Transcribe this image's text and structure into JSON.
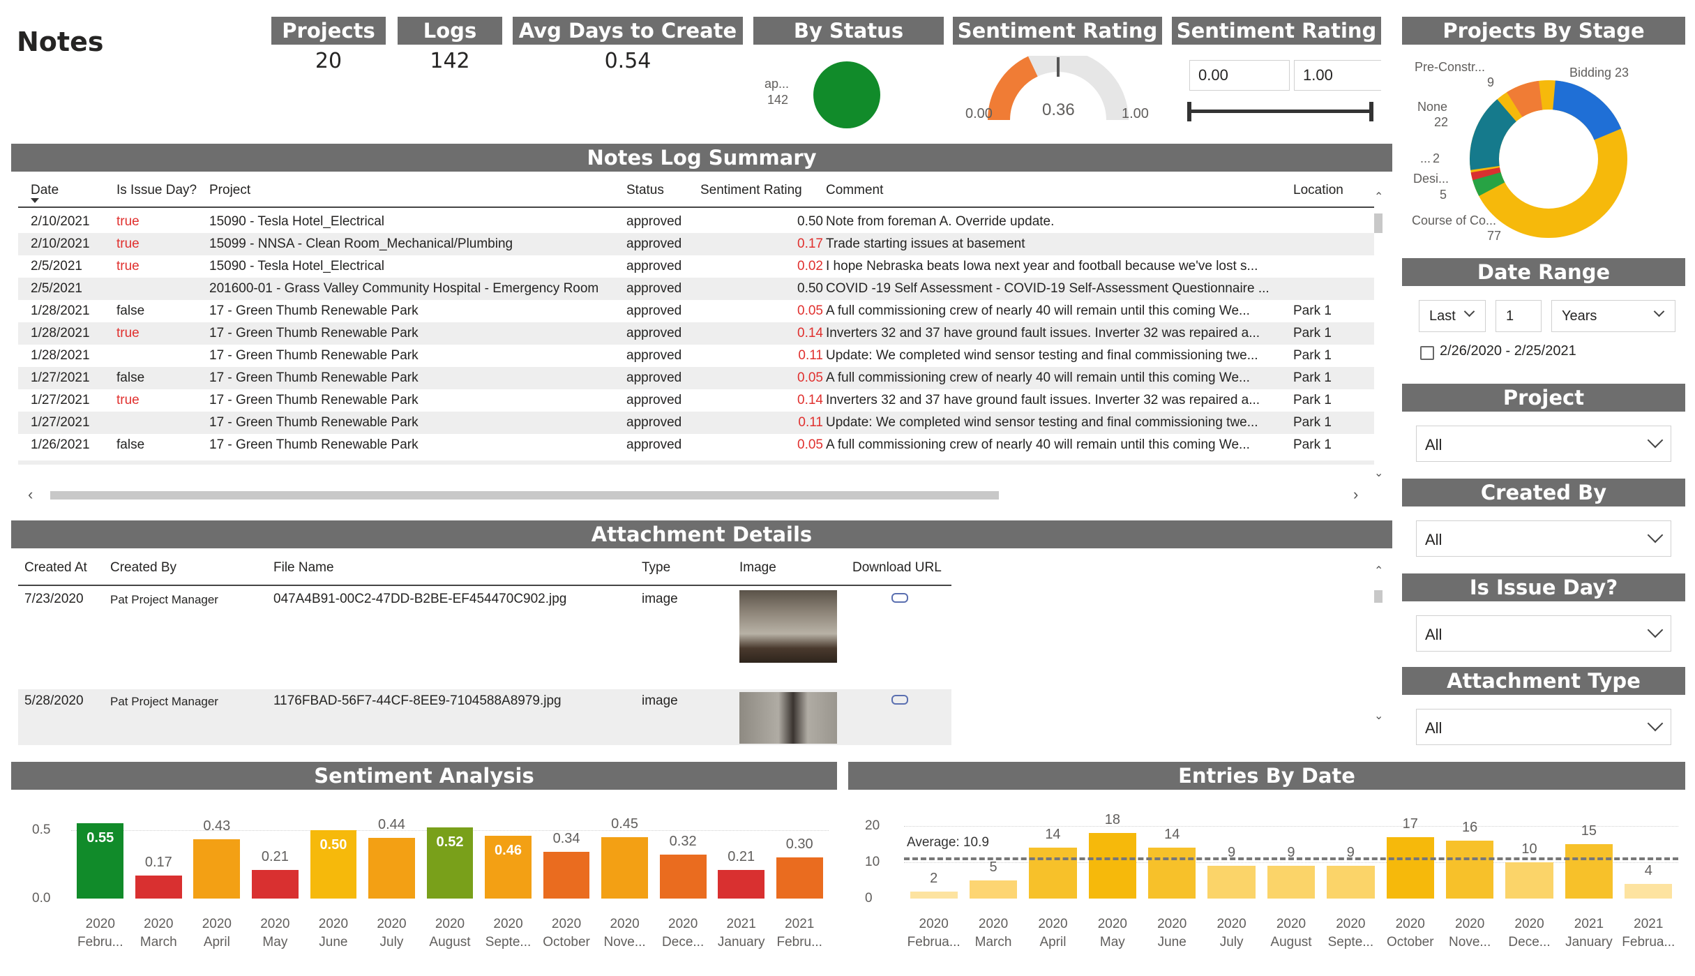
{
  "page_title": "Notes",
  "kpis": [
    {
      "label": "Projects",
      "value": "20"
    },
    {
      "label": "Logs",
      "value": "142"
    },
    {
      "label": "Avg Days to Create",
      "value": "0.54"
    }
  ],
  "by_status": {
    "title": "By Status",
    "label": "ap...",
    "value": "142",
    "color": "#118b2a"
  },
  "gauge": {
    "title": "Sentiment Rating",
    "min_label": "0.00",
    "max_label": "1.00",
    "value_label": "0.36",
    "value": 0.36,
    "fill_color": "#f07c35"
  },
  "sentiment_slider": {
    "title": "Sentiment Rating",
    "min": "0.00",
    "max": "1.00"
  },
  "projects_by_stage": {
    "title": "Projects By Stage",
    "labels": [
      {
        "name": "Bidding",
        "value": "23"
      },
      {
        "name": "Pre-Constr...",
        "value": "9"
      },
      {
        "name": "None",
        "value": "22"
      },
      {
        "name": "...",
        "value": "2"
      },
      {
        "name": "Desi...",
        "value": "5"
      },
      {
        "name": "Course of Co...",
        "value": "77"
      }
    ],
    "bidding_label": "Bidding 23"
  },
  "notes_log": {
    "title": "Notes Log Summary",
    "columns": [
      "Date",
      "Is Issue Day?",
      "Project",
      "Status",
      "Sentiment Rating",
      "Comment",
      "Location"
    ],
    "rows": [
      {
        "date": "2/10/2021",
        "issue": "true",
        "project": "15090 - Tesla Hotel_Electrical",
        "status": "approved",
        "rating": "0.50",
        "rating_red": false,
        "comment": "Note from foreman A.  Override update.",
        "location": ""
      },
      {
        "date": "2/10/2021",
        "issue": "true",
        "project": "15099 - NNSA - Clean Room_Mechanical/Plumbing",
        "status": "approved",
        "rating": "0.17",
        "rating_red": true,
        "comment": "Trade starting issues at basement",
        "location": ""
      },
      {
        "date": "2/5/2021",
        "issue": "true",
        "project": "15090 - Tesla Hotel_Electrical",
        "status": "approved",
        "rating": "0.02",
        "rating_red": true,
        "comment": "I hope Nebraska beats Iowa next year and football because we've lost s...",
        "location": ""
      },
      {
        "date": "2/5/2021",
        "issue": "",
        "project": "201600-01 - Grass Valley Community Hospital - Emergency Room",
        "status": "approved",
        "rating": "0.50",
        "rating_red": false,
        "comment": "COVID -19 Self Assessment - COVID-19 Self-Assessment Questionnaire ...",
        "location": ""
      },
      {
        "date": "1/28/2021",
        "issue": "false",
        "project": "17 - Green Thumb Renewable Park",
        "status": "approved",
        "rating": "0.05",
        "rating_red": true,
        "comment": "A full commissioning crew of nearly 40 will remain until this coming We...",
        "location": "Park 1"
      },
      {
        "date": "1/28/2021",
        "issue": "true",
        "project": "17 - Green Thumb Renewable Park",
        "status": "approved",
        "rating": "0.14",
        "rating_red": true,
        "comment": "Inverters 32 and 37 have ground fault issues. Inverter 32 was repaired a...",
        "location": "Park 1"
      },
      {
        "date": "1/28/2021",
        "issue": "",
        "project": "17 - Green Thumb Renewable Park",
        "status": "approved",
        "rating": "0.11",
        "rating_red": true,
        "comment": "Update: We completed wind sensor testing and final commissioning twe...",
        "location": "Park 1"
      },
      {
        "date": "1/27/2021",
        "issue": "false",
        "project": "17 - Green Thumb Renewable Park",
        "status": "approved",
        "rating": "0.05",
        "rating_red": true,
        "comment": "A full commissioning crew of nearly 40 will remain until this coming We...",
        "location": "Park 1"
      },
      {
        "date": "1/27/2021",
        "issue": "true",
        "project": "17 - Green Thumb Renewable Park",
        "status": "approved",
        "rating": "0.14",
        "rating_red": true,
        "comment": "Inverters 32 and 37 have ground fault issues. Inverter 32 was repaired a...",
        "location": "Park 1"
      },
      {
        "date": "1/27/2021",
        "issue": "",
        "project": "17 - Green Thumb Renewable Park",
        "status": "approved",
        "rating": "0.11",
        "rating_red": true,
        "comment": "Update: We completed wind sensor testing and final commissioning twe...",
        "location": "Park 1"
      },
      {
        "date": "1/26/2021",
        "issue": "false",
        "project": "17 - Green Thumb Renewable Park",
        "status": "approved",
        "rating": "0.05",
        "rating_red": true,
        "comment": "A full commissioning crew of nearly 40 will remain until this coming We...",
        "location": "Park 1"
      }
    ]
  },
  "attachments": {
    "title": "Attachment Details",
    "columns": [
      "Created At",
      "Created By",
      "File Name",
      "Type",
      "Image",
      "Download URL"
    ],
    "rows": [
      {
        "created_at": "7/23/2020",
        "created_by": "Pat Project Manager",
        "file": "047A4B91-00C2-47DD-B2BE-EF454470C902.jpg",
        "type": "image"
      },
      {
        "created_at": "5/28/2020",
        "created_by": "Pat Project Manager",
        "file": "1176FBAD-56F7-44CF-8EE9-7104588A8979.jpg",
        "type": "image"
      }
    ]
  },
  "date_range": {
    "title": "Date Range",
    "mode": "Last",
    "count": "1",
    "unit": "Years",
    "range_text": "2/26/2020 - 2/25/2021"
  },
  "slicers": [
    {
      "title": "Project",
      "value": "All"
    },
    {
      "title": "Created By",
      "value": "All"
    },
    {
      "title": "Is Issue Day?",
      "value": "All"
    },
    {
      "title": "Attachment Type",
      "value": "All"
    }
  ],
  "chart_data": [
    {
      "type": "bar",
      "title": "Sentiment Analysis",
      "categories": [
        [
          "2020",
          "Febru..."
        ],
        [
          "2020",
          "March"
        ],
        [
          "2020",
          "April"
        ],
        [
          "2020",
          "May"
        ],
        [
          "2020",
          "June"
        ],
        [
          "2020",
          "July"
        ],
        [
          "2020",
          "August"
        ],
        [
          "2020",
          "Septe..."
        ],
        [
          "2020",
          "October"
        ],
        [
          "2020",
          "Nove..."
        ],
        [
          "2020",
          "Dece..."
        ],
        [
          "2021",
          "January"
        ],
        [
          "2021",
          "Febru..."
        ]
      ],
      "values": [
        0.55,
        0.17,
        0.43,
        0.21,
        0.5,
        0.44,
        0.52,
        0.46,
        0.34,
        0.45,
        0.32,
        0.21,
        0.3
      ],
      "value_labels": [
        "0.55",
        "0.17",
        "0.43",
        "0.21",
        "0.50",
        "0.44",
        "0.52",
        "0.46",
        "0.34",
        "0.45",
        "0.32",
        "0.21",
        "0.30"
      ],
      "colors": [
        "#118b2a",
        "#d93030",
        "#f3a014",
        "#d93030",
        "#f6b90b",
        "#f3a014",
        "#79a01a",
        "#f3a014",
        "#ea6c1f",
        "#f3a014",
        "#ea6c1f",
        "#d93030",
        "#ea6c1f"
      ],
      "inside_labels": [
        true,
        false,
        false,
        false,
        true,
        false,
        true,
        true,
        false,
        false,
        false,
        false,
        false
      ],
      "yticks": [
        "0.0",
        "0.5"
      ],
      "ylim": [
        0,
        0.6
      ]
    },
    {
      "type": "bar",
      "title": "Entries By Date",
      "categories": [
        [
          "2020",
          "Februa..."
        ],
        [
          "2020",
          "March"
        ],
        [
          "2020",
          "April"
        ],
        [
          "2020",
          "May"
        ],
        [
          "2020",
          "June"
        ],
        [
          "2020",
          "July"
        ],
        [
          "2020",
          "August"
        ],
        [
          "2020",
          "Septe..."
        ],
        [
          "2020",
          "October"
        ],
        [
          "2020",
          "Nove..."
        ],
        [
          "2020",
          "Dece..."
        ],
        [
          "2021",
          "January"
        ],
        [
          "2021",
          "Februa..."
        ]
      ],
      "values": [
        2,
        5,
        14,
        18,
        14,
        9,
        9,
        9,
        17,
        16,
        10,
        15,
        4
      ],
      "value_labels": [
        "2",
        "5",
        "14",
        "18",
        "14",
        "9",
        "9",
        "9",
        "17",
        "16",
        "10",
        "15",
        "4"
      ],
      "colors": [
        "#fde3a0",
        "#fdd572",
        "#f7c12a",
        "#f6b90b",
        "#f7c12a",
        "#fbd469",
        "#fbd469",
        "#fbd469",
        "#f6b90b",
        "#f7c12a",
        "#fbd469",
        "#f7c12a",
        "#fde3a0"
      ],
      "average": 10.9,
      "average_label": "Average: 10.9",
      "yticks": [
        "0",
        "10",
        "20"
      ],
      "ylim": [
        0,
        20
      ]
    }
  ]
}
